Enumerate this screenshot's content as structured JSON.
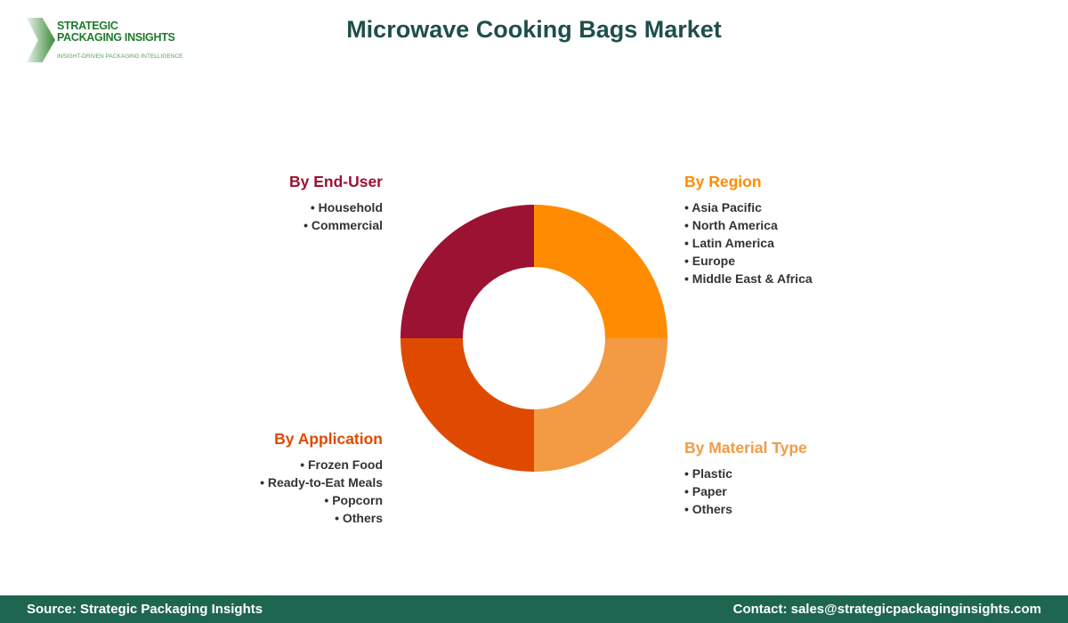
{
  "logo": {
    "line1": "STRATEGIC",
    "line2": "PACKAGING INSIGHTS",
    "tagline": "INSIGHT-DRIVEN PACKAGING INTELLIGENCE"
  },
  "title": "Microwave Cooking Bags Market",
  "segments": [
    {
      "title": "By Region",
      "color": "#ff8c00",
      "items": [
        "Asia Pacific",
        "North America",
        "Latin America",
        "Europe",
        "Middle East & Africa"
      ]
    },
    {
      "title": "By Material Type",
      "color": "#f39a44",
      "items": [
        "Plastic",
        "Paper",
        "Others"
      ]
    },
    {
      "title": "By Application",
      "color": "#e04a00",
      "items": [
        "Frozen Food",
        "Ready-to-Eat Meals",
        "Popcorn",
        "Others"
      ]
    },
    {
      "title": "By End-User",
      "color": "#9c1232",
      "items": [
        "Household",
        "Commercial"
      ]
    }
  ],
  "footer": {
    "source": "Source: Strategic Packaging Insights",
    "contact": "Contact: sales@strategicpackaginginsights.com"
  }
}
